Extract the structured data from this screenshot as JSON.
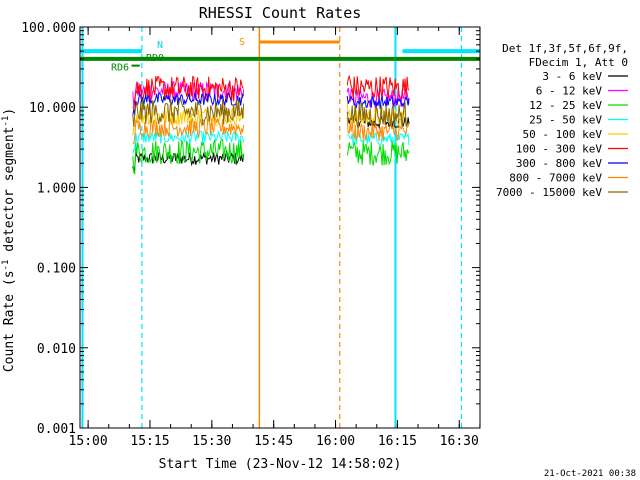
{
  "chart_data": {
    "type": "line",
    "title": "RHESSI Count Rates",
    "xlabel": "Start Time (23-Nov-12 14:58:02)",
    "ylabel": "Count Rate (s⁻¹ detector segment⁻¹)",
    "ylabel_main": "Count Rate (s",
    "ylabel_sup1": "-1",
    "ylabel_mid": " detector segment",
    "ylabel_sup2": "-1",
    "ylabel_end": ")",
    "x_axis_unit": "minutes after 14:58:02",
    "xlim": [
      0,
      97
    ],
    "ylim": [
      0.001,
      100
    ],
    "yscale": "log",
    "grid": false,
    "x_ticks": [
      {
        "t": 1.97,
        "label": "15:00"
      },
      {
        "t": 16.97,
        "label": "15:15"
      },
      {
        "t": 31.97,
        "label": "15:30"
      },
      {
        "t": 46.97,
        "label": "15:45"
      },
      {
        "t": 61.97,
        "label": "16:00"
      },
      {
        "t": 76.97,
        "label": "16:15"
      },
      {
        "t": 91.97,
        "label": "16:30"
      }
    ],
    "y_ticks": [
      {
        "v": 0.001,
        "label": "0.001"
      },
      {
        "v": 0.01,
        "label": "0.010"
      },
      {
        "v": 0.1,
        "label": "0.100"
      },
      {
        "v": 1,
        "label": "1.000"
      },
      {
        "v": 10,
        "label": "10.000"
      },
      {
        "v": 100,
        "label": "100.000"
      }
    ],
    "legend_header": [
      "Det 1f,3f,5f,6f,9f,",
      "FDecim 1, Att 0"
    ],
    "legend_position": "right",
    "segments": [
      [
        12.8,
        39.7
      ],
      [
        64.8,
        79.8
      ]
    ],
    "series": [
      {
        "name": "3 - 6 keV",
        "color": "#000000",
        "level": [
          2.3,
          6.5
        ]
      },
      {
        "name": "6 - 12 keV",
        "color": "#ff00ff",
        "level": [
          16.0,
          13.0
        ]
      },
      {
        "name": "12 - 25 keV",
        "color": "#00dd00",
        "level": [
          2.8,
          2.7
        ]
      },
      {
        "name": "25 - 50 keV",
        "color": "#00ffff",
        "level": [
          4.2,
          4.0
        ]
      },
      {
        "name": "50 - 100 keV",
        "color": "#ffcc00",
        "level": [
          7.8,
          7.5
        ]
      },
      {
        "name": "100 - 300 keV",
        "color": "#ff0000",
        "level": [
          17.0,
          17.5
        ]
      },
      {
        "name": "300 - 800 keV",
        "color": "#0000ff",
        "level": [
          12.5,
          11.5
        ]
      },
      {
        "name": "800 - 7000 keV",
        "color": "#ff8800",
        "level": [
          5.6,
          5.0
        ]
      },
      {
        "name": "7000 - 15000 keV",
        "color": "#886600",
        "level": [
          8.8,
          8.0
        ]
      }
    ],
    "annotations": {
      "night_label": "N",
      "saa_label": "S",
      "rd0_label": "RD0",
      "rd6_label": "RD6",
      "night_bars": [
        {
          "t0": 0,
          "t1": 15.0,
          "y": 50
        },
        {
          "t0": 78.2,
          "t1": 97,
          "y": 50
        }
      ],
      "saa_bar": {
        "t0": 43.5,
        "t1": 63.0,
        "y": 65
      },
      "rd0_bar": {
        "t0": 0,
        "t1": 97,
        "y": 40
      },
      "rd6_bar": {
        "t0": 12.5,
        "t1": 14.5,
        "y": 33
      },
      "cyan_solid_lines": [
        0.6,
        76.5
      ],
      "cyan_dashed_lines": [
        15.0,
        92.5
      ],
      "orange_solid_line": 43.5,
      "orange_dashed_line": 63.0
    }
  },
  "footer": {
    "timestamp": "21-Oct-2021 00:38"
  }
}
